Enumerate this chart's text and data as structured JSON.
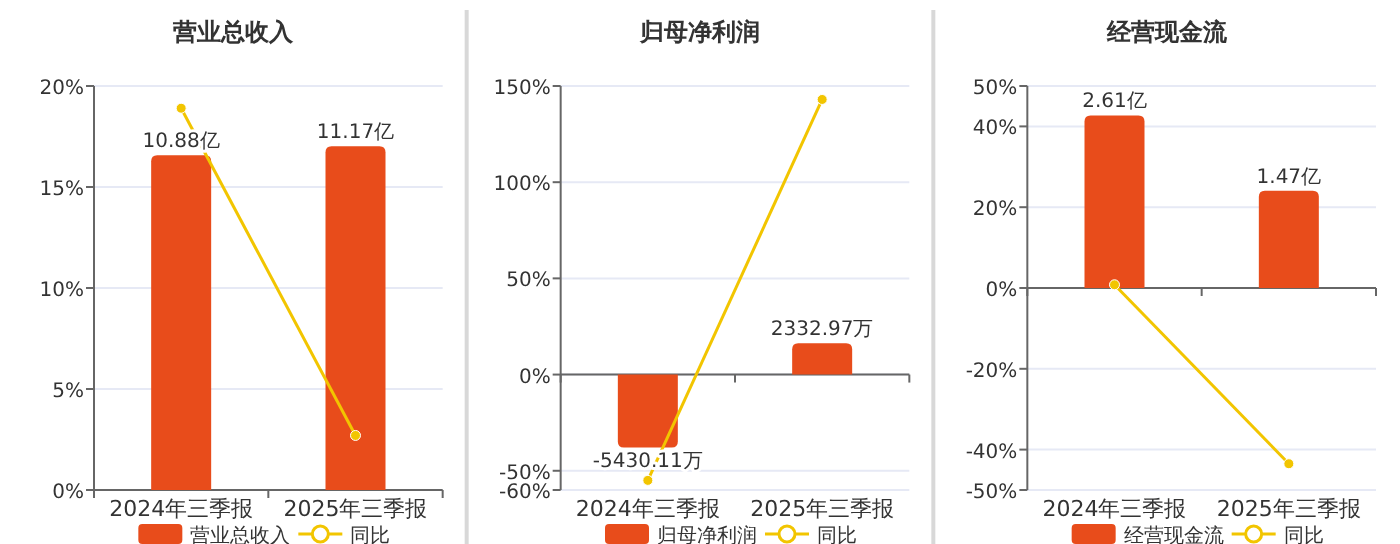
{
  "chart_data": [
    {
      "type": "bar",
      "title": "营业总收入",
      "categories": [
        "2024年三季报",
        "2025年三季报"
      ],
      "series": [
        {
          "name": "营业总收入",
          "axis": "y2",
          "color": "#e84c1b",
          "values": [
            10.88,
            11.17
          ],
          "value_labels": [
            "10.88亿",
            "11.17亿"
          ]
        },
        {
          "name": "同比",
          "type": "line",
          "color": "#f2c500",
          "values": [
            18.9,
            2.7
          ],
          "marker": "circle"
        }
      ],
      "ylim": [
        0,
        20
      ],
      "yticks": [
        {
          "value": 0,
          "label": "0%"
        },
        {
          "value": 5,
          "label": "5%"
        },
        {
          "value": 10,
          "label": "10%"
        },
        {
          "value": 15,
          "label": "15%"
        },
        {
          "value": 20,
          "label": "20%"
        }
      ],
      "y2lim": [
        0,
        13.13
      ],
      "grid": "y",
      "legend": "bottom"
    },
    {
      "type": "bar",
      "title": "归母净利润",
      "categories": [
        "2024年三季报",
        "2025年三季报"
      ],
      "series": [
        {
          "name": "归母净利润",
          "axis": "y2",
          "color": "#e84c1b",
          "values": [
            -5430.11,
            2332.97
          ],
          "value_labels": [
            "-5430.11万",
            "2332.97万"
          ]
        },
        {
          "name": "同比",
          "type": "line",
          "color": "#f2c500",
          "values": [
            -55,
            143
          ],
          "marker": "circle"
        }
      ],
      "ylim": [
        -60,
        150
      ],
      "yticks": [
        {
          "value": -60,
          "label": "-60%"
        },
        {
          "value": -50,
          "label": "-50%"
        },
        {
          "value": 0,
          "label": "0%"
        },
        {
          "value": 50,
          "label": "50%"
        },
        {
          "value": 100,
          "label": "100%"
        },
        {
          "value": 150,
          "label": "150%"
        }
      ],
      "y2lim": [
        -8600,
        21500
      ],
      "grid": "y",
      "legend": "bottom"
    },
    {
      "type": "bar",
      "title": "经营现金流",
      "categories": [
        "2024年三季报",
        "2025年三季报"
      ],
      "series": [
        {
          "name": "经营现金流",
          "axis": "y2",
          "color": "#e84c1b",
          "values": [
            2.61,
            1.47
          ],
          "value_labels": [
            "2.61亿",
            "1.47亿"
          ]
        },
        {
          "name": "同比",
          "type": "line",
          "color": "#f2c500",
          "values": [
            0.8,
            -43.5
          ],
          "marker": "circle"
        }
      ],
      "ylim": [
        -50,
        50
      ],
      "yticks": [
        {
          "value": -50,
          "label": "-50%"
        },
        {
          "value": -40,
          "label": "-40%"
        },
        {
          "value": -20,
          "label": "-20%"
        },
        {
          "value": 0,
          "label": "0%"
        },
        {
          "value": 20,
          "label": "20%"
        },
        {
          "value": 40,
          "label": "40%"
        },
        {
          "value": 50,
          "label": "50%"
        }
      ],
      "y2lim": [
        -3.056,
        3.056
      ],
      "grid": "y",
      "legend": "bottom"
    }
  ]
}
